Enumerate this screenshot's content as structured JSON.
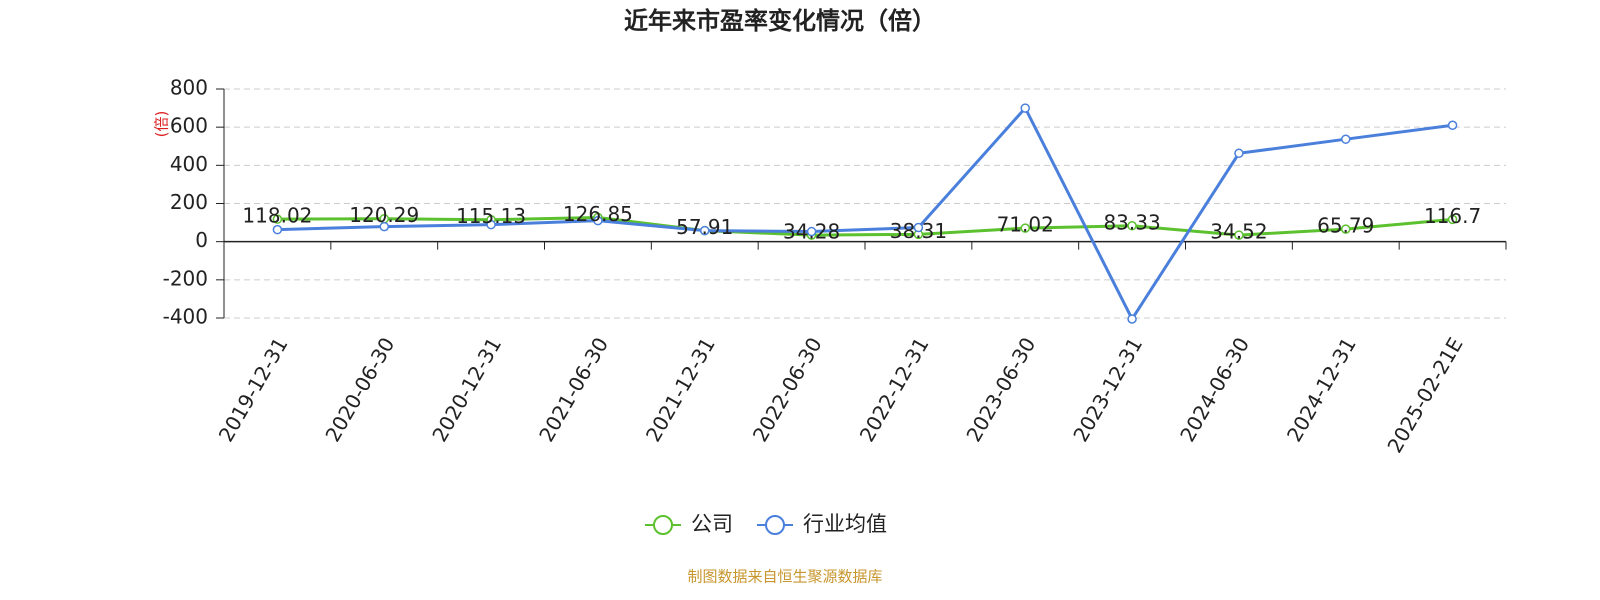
{
  "chart_data": {
    "type": "line",
    "title": "近年来市盈率变化情况（倍）",
    "y_label": "(倍)",
    "categories": [
      "2019-12-31",
      "2020-06-30",
      "2020-12-31",
      "2021-06-30",
      "2021-12-31",
      "2022-06-30",
      "2022-12-31",
      "2023-06-30",
      "2023-12-31",
      "2024-06-30",
      "2024-12-31",
      "2025-02-21E"
    ],
    "series": [
      {
        "name": "公司",
        "color": "#5cc12e",
        "values": [
          118.02,
          120.29,
          115.13,
          126.85,
          57.91,
          34.28,
          38.31,
          71.02,
          83.33,
          34.52,
          65.79,
          116.7
        ],
        "show_labels": true
      },
      {
        "name": "行业均值",
        "color": "#4a80dc",
        "values": [
          63,
          79,
          89,
          110,
          58,
          53,
          74,
          700,
          -405,
          463,
          537,
          610
        ],
        "show_labels": false
      }
    ],
    "ylim": [
      -400,
      800
    ],
    "yticks": [
      800,
      600,
      400,
      200,
      0,
      -200,
      -400
    ],
    "grid": true,
    "legend": "bottom",
    "source": "制图数据来自恒生聚源数据库"
  }
}
